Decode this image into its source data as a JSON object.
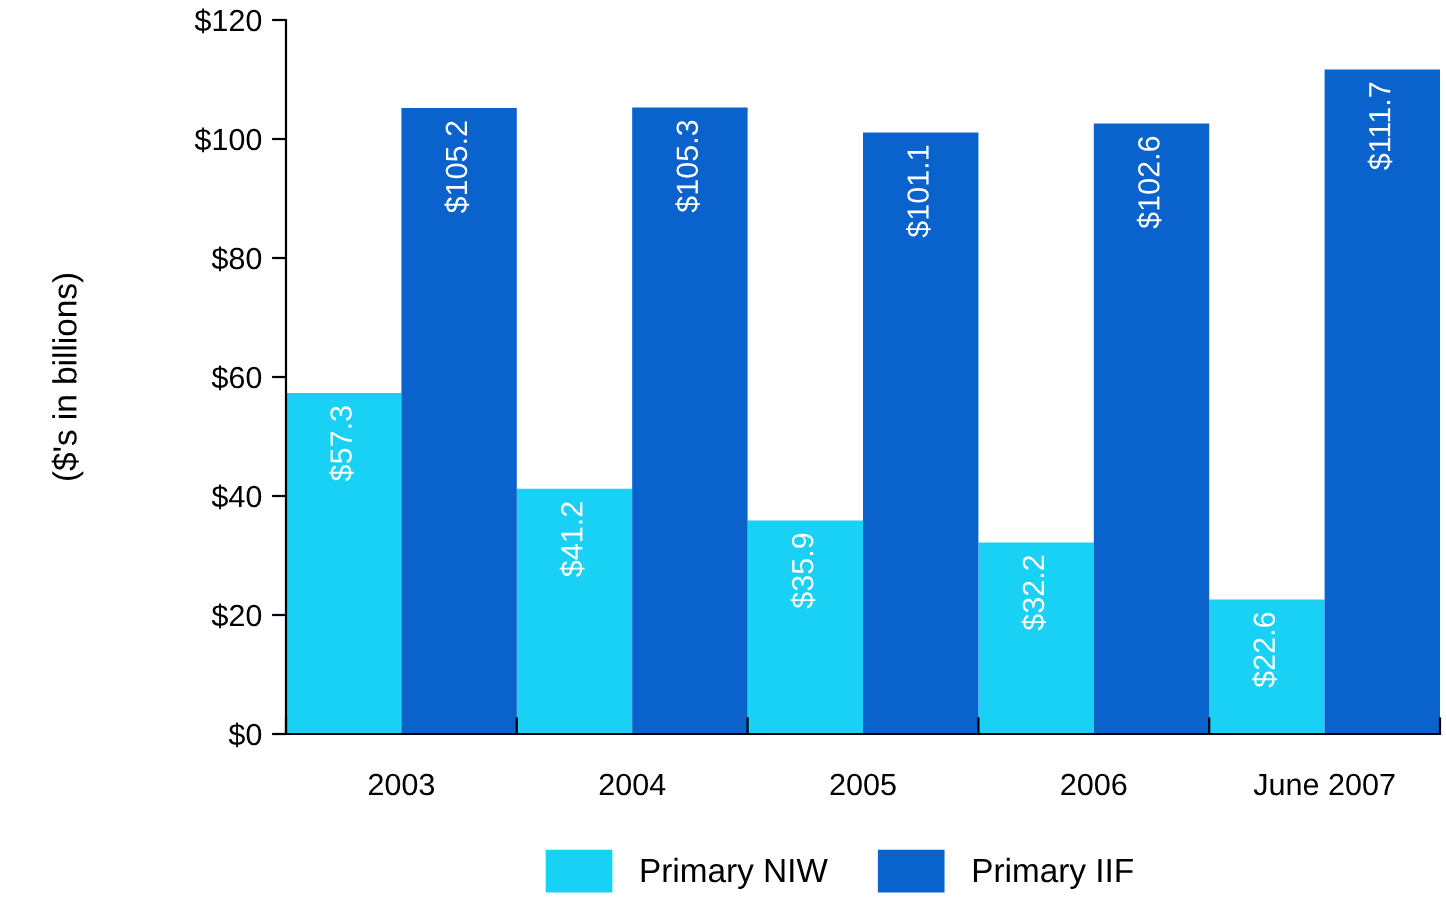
{
  "chart_data": {
    "type": "bar",
    "ylabel": "($'s in billions)",
    "categories": [
      "2003",
      "2004",
      "2005",
      "2006",
      "June 2007"
    ],
    "series": [
      {
        "name": "Primary NIW",
        "color": "#19d0f5",
        "values": [
          57.3,
          41.2,
          35.9,
          32.2,
          22.6
        ],
        "value_labels": [
          "$57.3",
          "$41.2",
          "$35.9",
          "$32.2",
          "$22.6"
        ]
      },
      {
        "name": "Primary IIF",
        "color": "#0a62cc",
        "values": [
          105.2,
          105.3,
          101.1,
          102.6,
          111.7
        ],
        "value_labels": [
          "$105.2",
          "$105.3",
          "$101.1",
          "$102.6",
          "$111.7"
        ]
      }
    ],
    "ylim": [
      0,
      120
    ],
    "yticks": [
      {
        "value": 0,
        "label": "$0"
      },
      {
        "value": 20,
        "label": "$20"
      },
      {
        "value": 40,
        "label": "$40"
      },
      {
        "value": 60,
        "label": "$60"
      },
      {
        "value": 80,
        "label": "$80"
      },
      {
        "value": 100,
        "label": "$100"
      },
      {
        "value": 120,
        "label": "$120"
      }
    ],
    "grid": false,
    "legend": "bottom"
  }
}
